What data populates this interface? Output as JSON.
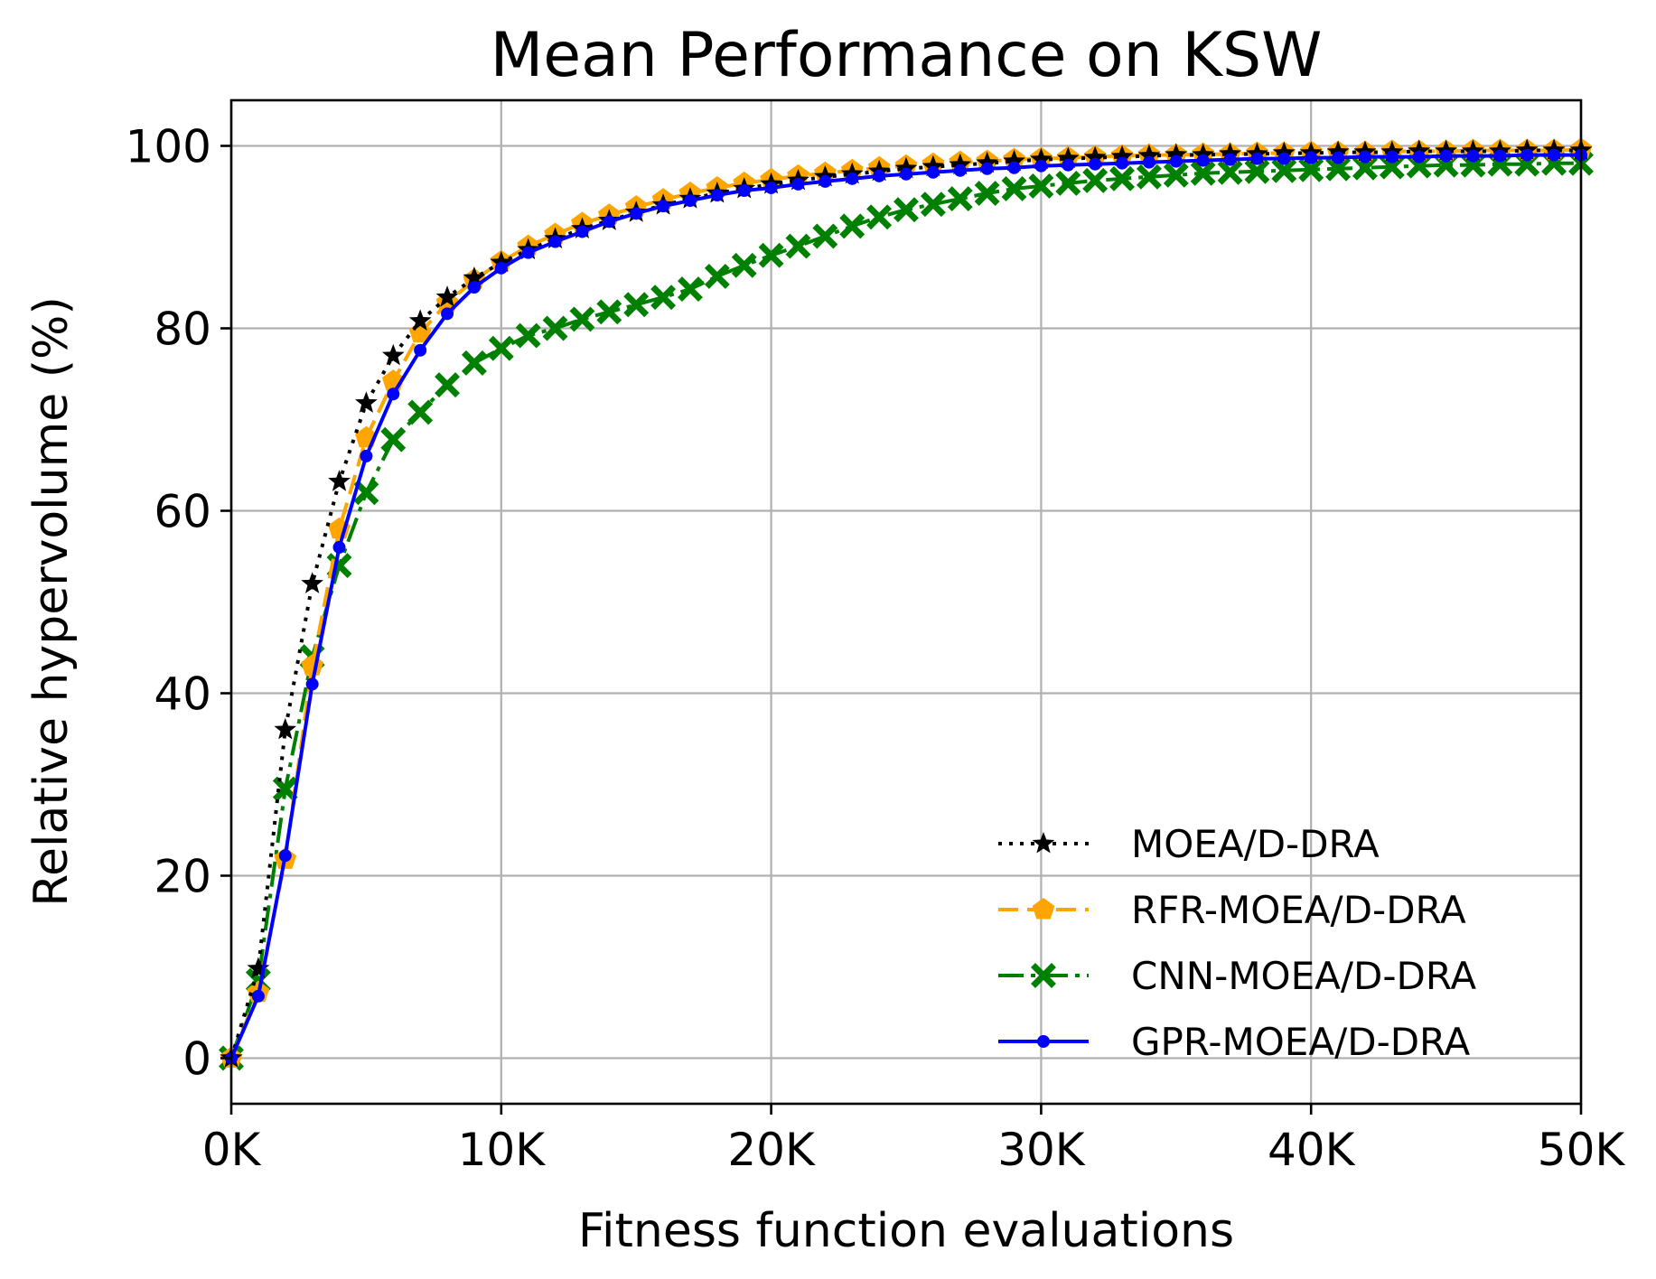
{
  "chart_data": {
    "type": "line",
    "title": "Mean Performance on KSW",
    "xlabel": "Fitness function evaluations",
    "ylabel": "Relative hypervolume (%)",
    "xlim": [
      0,
      50000
    ],
    "ylim": [
      -5,
      105
    ],
    "xticks": [
      {
        "value": 0,
        "label": "0K"
      },
      {
        "value": 10000,
        "label": "10K"
      },
      {
        "value": 20000,
        "label": "20K"
      },
      {
        "value": 30000,
        "label": "30K"
      },
      {
        "value": 40000,
        "label": "40K"
      },
      {
        "value": 50000,
        "label": "50K"
      }
    ],
    "yticks": [
      {
        "value": 0,
        "label": "0"
      },
      {
        "value": 20,
        "label": "20"
      },
      {
        "value": 40,
        "label": "40"
      },
      {
        "value": 60,
        "label": "60"
      },
      {
        "value": 80,
        "label": "80"
      },
      {
        "value": 100,
        "label": "100"
      }
    ],
    "grid": true,
    "legend_position": "lower-right",
    "x": [
      0,
      1000,
      2000,
      3000,
      4000,
      5000,
      6000,
      7000,
      8000,
      9000,
      10000,
      11000,
      12000,
      13000,
      14000,
      15000,
      16000,
      17000,
      18000,
      19000,
      20000,
      21000,
      22000,
      23000,
      24000,
      25000,
      26000,
      27000,
      28000,
      29000,
      30000,
      31000,
      32000,
      33000,
      34000,
      35000,
      36000,
      37000,
      38000,
      39000,
      40000,
      41000,
      42000,
      43000,
      44000,
      45000,
      46000,
      47000,
      48000,
      49000,
      50000
    ],
    "series": [
      {
        "name": "MOEA/D-DRA",
        "color": "#000000",
        "line_style": "dotted",
        "marker": "star",
        "values": [
          0,
          9.8,
          36,
          52,
          63.2,
          71.8,
          77,
          80.8,
          83.4,
          85.5,
          87.2,
          88.6,
          89.8,
          90.9,
          91.8,
          92.7,
          93.5,
          94.2,
          94.8,
          95.3,
          95.8,
          96.2,
          96.6,
          96.9,
          97.2,
          97.5,
          97.7,
          97.9,
          98.1,
          98.3,
          98.5,
          98.6,
          98.7,
          98.8,
          98.9,
          99,
          99,
          99.1,
          99.1,
          99.2,
          99.2,
          99.3,
          99.3,
          99.3,
          99.4,
          99.4,
          99.4,
          99.4,
          99.5,
          99.5,
          99.5
        ]
      },
      {
        "name": "RFR-MOEA/D-DRA",
        "color": "#ffa500",
        "line_style": "dashed",
        "marker": "pentagon",
        "values": [
          0,
          7.2,
          21.8,
          43,
          58,
          68,
          74.2,
          79.5,
          82.8,
          85.3,
          87.3,
          89,
          90.3,
          91.5,
          92.4,
          93.3,
          94.1,
          94.8,
          95.4,
          95.9,
          96.3,
          96.7,
          97,
          97.3,
          97.6,
          97.8,
          98,
          98.2,
          98.3,
          98.5,
          98.6,
          98.7,
          98.8,
          98.9,
          99,
          99,
          99.1,
          99.1,
          99.2,
          99.2,
          99.3,
          99.3,
          99.3,
          99.4,
          99.4,
          99.4,
          99.5,
          99.5,
          99.5,
          99.5,
          99.6
        ]
      },
      {
        "name": "CNN-MOEA/D-DRA",
        "color": "#008000",
        "line_style": "dashdot",
        "marker": "x",
        "values": [
          0,
          8.5,
          29.5,
          44,
          54,
          62,
          67.8,
          70.8,
          73.8,
          76.2,
          77.8,
          79.2,
          80,
          81,
          81.8,
          82.6,
          83.4,
          84.3,
          85.7,
          86.9,
          88,
          89,
          90.1,
          91.2,
          92.2,
          93,
          93.6,
          94.2,
          94.8,
          95.3,
          95.6,
          95.9,
          96.2,
          96.4,
          96.6,
          96.8,
          97,
          97.1,
          97.2,
          97.3,
          97.4,
          97.5,
          97.6,
          97.7,
          97.8,
          97.9,
          97.9,
          98,
          98,
          98.1,
          98.1
        ]
      },
      {
        "name": "GPR-MOEA/D-DRA",
        "color": "#0000ff",
        "line_style": "solid",
        "marker": "dot",
        "values": [
          0,
          6.8,
          22.2,
          41,
          56,
          66,
          72.8,
          77.6,
          81.6,
          84.5,
          86.6,
          88.3,
          89.5,
          90.6,
          91.7,
          92.6,
          93.4,
          94,
          94.6,
          95.1,
          95.4,
          95.8,
          96.1,
          96.4,
          96.7,
          96.9,
          97.1,
          97.3,
          97.5,
          97.6,
          97.8,
          97.9,
          98,
          98.1,
          98.2,
          98.3,
          98.4,
          98.5,
          98.6,
          98.6,
          98.7,
          98.7,
          98.8,
          98.8,
          98.8,
          98.9,
          98.9,
          98.9,
          99,
          99,
          99
        ]
      }
    ]
  }
}
